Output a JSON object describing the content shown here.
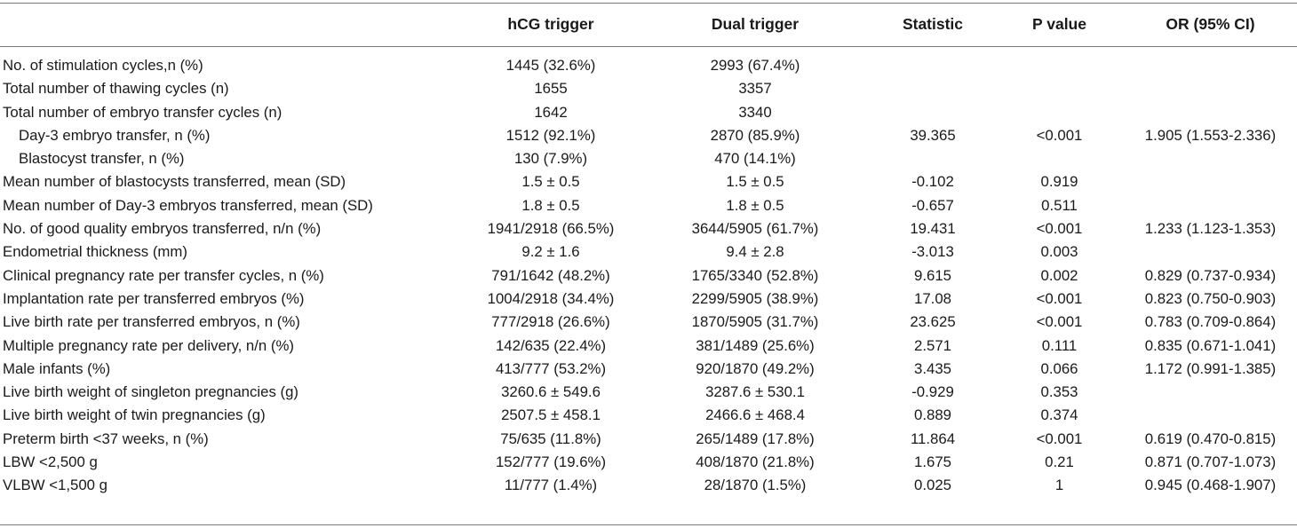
{
  "table": {
    "headers": {
      "label": "",
      "hcg": "hCG trigger",
      "dual": "Dual trigger",
      "statistic": "Statistic",
      "p_value": "P value",
      "or": "OR (95% CI)"
    },
    "rows": [
      {
        "label": "No. of stimulation cycles,n (%)",
        "hcg": "1445 (32.6%)",
        "dual": "2993 (67.4%)",
        "statistic": "",
        "p": "",
        "or": ""
      },
      {
        "label": "Total number of thawing cycles (n)",
        "hcg": "1655",
        "dual": "3357",
        "statistic": "",
        "p": "",
        "or": ""
      },
      {
        "label": "Total number of embryo transfer cycles (n)",
        "hcg": "1642",
        "dual": "3340",
        "statistic": "",
        "p": "",
        "or": ""
      },
      {
        "label": "Day-3 embryo transfer, n (%)",
        "hcg": "1512 (92.1%)",
        "dual": "2870 (85.9%)",
        "statistic": "39.365",
        "p": "<0.001",
        "or": "1.905 (1.553-2.336)"
      },
      {
        "label": "Blastocyst transfer, n (%)",
        "hcg": "130 (7.9%)",
        "dual": "470 (14.1%)",
        "statistic": "",
        "p": "",
        "or": ""
      },
      {
        "label": "Mean number of blastocysts transferred, mean (SD)",
        "hcg": "1.5 ± 0.5",
        "dual": "1.5 ± 0.5",
        "statistic": "-0.102",
        "p": "0.919",
        "or": ""
      },
      {
        "label": "Mean number of Day-3 embryos transferred, mean (SD)",
        "hcg": "1.8 ± 0.5",
        "dual": "1.8 ± 0.5",
        "statistic": "-0.657",
        "p": "0.511",
        "or": ""
      },
      {
        "label": "No. of good quality embryos transferred, n/n (%)",
        "hcg": "1941/2918 (66.5%)",
        "dual": "3644/5905 (61.7%)",
        "statistic": "19.431",
        "p": "<0.001",
        "or": "1.233 (1.123-1.353)"
      },
      {
        "label": "Endometrial thickness (mm)",
        "hcg": "9.2 ± 1.6",
        "dual": "9.4 ± 2.8",
        "statistic": "-3.013",
        "p": "0.003",
        "or": ""
      },
      {
        "label": "Clinical pregnancy rate per transfer cycles, n (%)",
        "hcg": "791/1642 (48.2%)",
        "dual": "1765/3340 (52.8%)",
        "statistic": "9.615",
        "p": "0.002",
        "or": "0.829 (0.737-0.934)"
      },
      {
        "label": "Implantation rate per transferred embryos (%)",
        "hcg": "1004/2918 (34.4%)",
        "dual": "2299/5905 (38.9%)",
        "statistic": "17.08",
        "p": "<0.001",
        "or": "0.823 (0.750-0.903)"
      },
      {
        "label": "Live birth rate per transferred embryos, n (%)",
        "hcg": "777/2918 (26.6%)",
        "dual": "1870/5905 (31.7%)",
        "statistic": "23.625",
        "p": "<0.001",
        "or": "0.783 (0.709-0.864)"
      },
      {
        "label": "Multiple pregnancy rate per delivery, n/n (%)",
        "hcg": "142/635 (22.4%)",
        "dual": "381/1489 (25.6%)",
        "statistic": "2.571",
        "p": "0.111",
        "or": "0.835 (0.671-1.041)"
      },
      {
        "label": "Male infants (%)",
        "hcg": "413/777 (53.2%)",
        "dual": "920/1870 (49.2%)",
        "statistic": "3.435",
        "p": "0.066",
        "or": "1.172 (0.991-1.385)"
      },
      {
        "label": "Live birth weight of singleton pregnancies (g)",
        "hcg": "3260.6 ± 549.6",
        "dual": "3287.6 ± 530.1",
        "statistic": "-0.929",
        "p": "0.353",
        "or": ""
      },
      {
        "label": "Live birth weight of twin pregnancies (g)",
        "hcg": "2507.5 ± 458.1",
        "dual": "2466.6 ± 468.4",
        "statistic": "0.889",
        "p": "0.374",
        "or": ""
      },
      {
        "label": "Preterm birth <37 weeks, n (%)",
        "hcg": "75/635 (11.8%)",
        "dual": "265/1489 (17.8%)",
        "statistic": "11.864",
        "p": "<0.001",
        "or": "0.619 (0.470-0.815)"
      },
      {
        "label": "LBW <2,500 g",
        "hcg": "152/777 (19.6%)",
        "dual": "408/1870 (21.8%)",
        "statistic": "1.675",
        "p": "0.21",
        "or": "0.871 (0.707-1.073)"
      },
      {
        "label": "VLBW <1,500 g",
        "hcg": "11/777 (1.4%)",
        "dual": "28/1870 (1.5%)",
        "statistic": "0.025",
        "p": "1",
        "or": "0.945 (0.468-1.907)"
      }
    ]
  }
}
